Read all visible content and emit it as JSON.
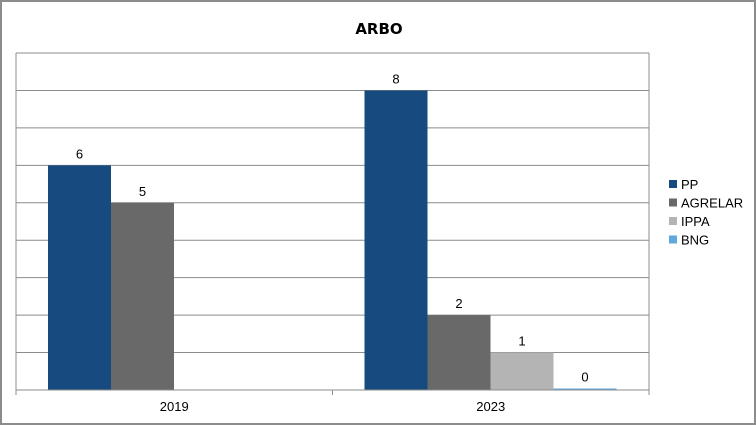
{
  "chart_data": {
    "type": "bar",
    "title": "ARBO",
    "categories": [
      "2019",
      "2023"
    ],
    "series": [
      {
        "name": "PP",
        "values": [
          6,
          8
        ],
        "color": "#174a7e"
      },
      {
        "name": "AGRELAR",
        "values": [
          5,
          2
        ],
        "color": "#696969"
      },
      {
        "name": "IPPA",
        "values": [
          null,
          1
        ],
        "color": "#b4b4b4"
      },
      {
        "name": "BNG",
        "values": [
          null,
          0
        ],
        "color": "#5fa8db"
      }
    ],
    "xlabel": "",
    "ylabel": "",
    "ylim": [
      0,
      9
    ],
    "grid": true,
    "legend": "right",
    "show_data_labels": true
  }
}
